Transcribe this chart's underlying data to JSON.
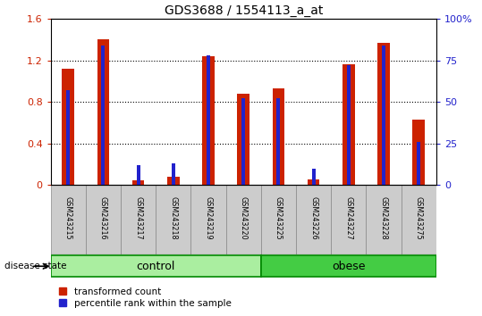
{
  "title": "GDS3688 / 1554113_a_at",
  "samples": [
    "GSM243215",
    "GSM243216",
    "GSM243217",
    "GSM243218",
    "GSM243219",
    "GSM243220",
    "GSM243225",
    "GSM243226",
    "GSM243227",
    "GSM243228",
    "GSM243275"
  ],
  "transformed_count": [
    1.12,
    1.4,
    0.04,
    0.08,
    1.24,
    0.88,
    0.93,
    0.05,
    1.16,
    1.37,
    0.63
  ],
  "percentile_rank": [
    57,
    84,
    12,
    13,
    78,
    52,
    52,
    10,
    72,
    84,
    26
  ],
  "groups": [
    "control",
    "control",
    "control",
    "control",
    "control",
    "control",
    "obese",
    "obese",
    "obese",
    "obese",
    "obese"
  ],
  "bar_color_red": "#CC2200",
  "bar_color_blue": "#2222CC",
  "ylim_left": [
    0,
    1.6
  ],
  "ylim_right": [
    0,
    100
  ],
  "yticks_left": [
    0,
    0.4,
    0.8,
    1.2,
    1.6
  ],
  "yticks_right": [
    0,
    25,
    50,
    75,
    100
  ],
  "ytick_labels_left": [
    "0",
    "0.4",
    "0.8",
    "1.2",
    "1.6"
  ],
  "ytick_labels_right": [
    "0",
    "25",
    "50",
    "75",
    "100%"
  ],
  "background_color": "#FFFFFF",
  "plot_bg_color": "#FFFFFF",
  "sample_label_area_color": "#CCCCCC",
  "control_color": "#AAEEA0",
  "obese_color": "#44CC44",
  "group_border_color": "#008800",
  "group_label_control": "control",
  "group_label_obese": "obese",
  "legend_red": "transformed count",
  "legend_blue": "percentile rank within the sample",
  "disease_state_label": "disease state"
}
